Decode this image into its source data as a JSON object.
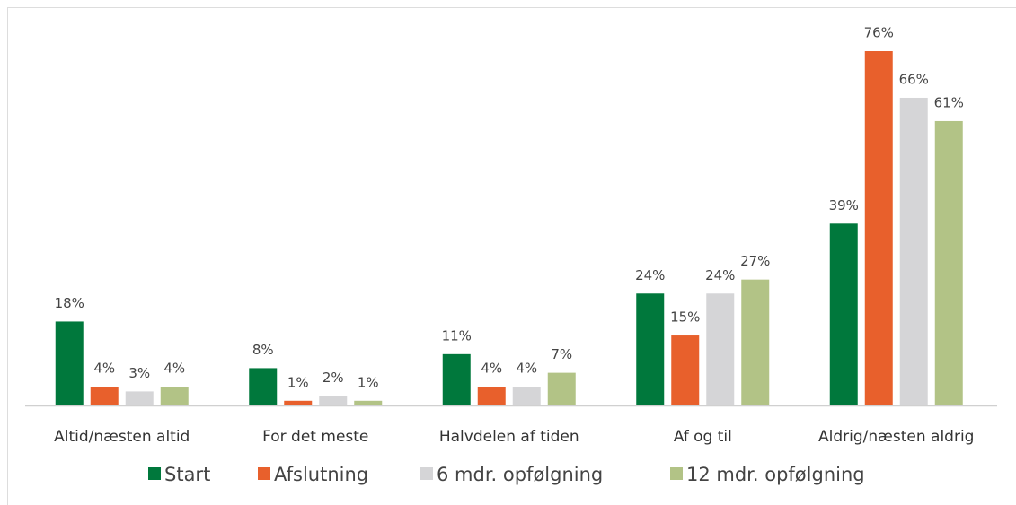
{
  "chart_data": {
    "type": "bar",
    "categories": [
      "Altid/næsten altid",
      "For det meste",
      "Halvdelen af tiden",
      "Af og til",
      "Aldrig/næsten aldrig"
    ],
    "series": [
      {
        "name": "Start",
        "color": "#00783c",
        "values": [
          18,
          8,
          11,
          24,
          39
        ],
        "value_labels": [
          "18%",
          "8%",
          "11%",
          "24%",
          "39%"
        ]
      },
      {
        "name": "Afslutning",
        "color": "#e8602c",
        "values": [
          4,
          1,
          4,
          15,
          76
        ],
        "value_labels": [
          "4%",
          "1%",
          "4%",
          "15%",
          "76%"
        ]
      },
      {
        "name": "6 mdr. opfølgning",
        "color": "#d5d5d7",
        "values": [
          3,
          2,
          4,
          24,
          66
        ],
        "value_labels": [
          "3%",
          "2%",
          "4%",
          "24%",
          "66%"
        ]
      },
      {
        "name": "12 mdr. opfølgning",
        "color": "#b2c386",
        "values": [
          4,
          1,
          7,
          27,
          61
        ],
        "value_labels": [
          "4%",
          "1%",
          "7%",
          "27%",
          "61%"
        ]
      }
    ],
    "legend": "bottom"
  }
}
